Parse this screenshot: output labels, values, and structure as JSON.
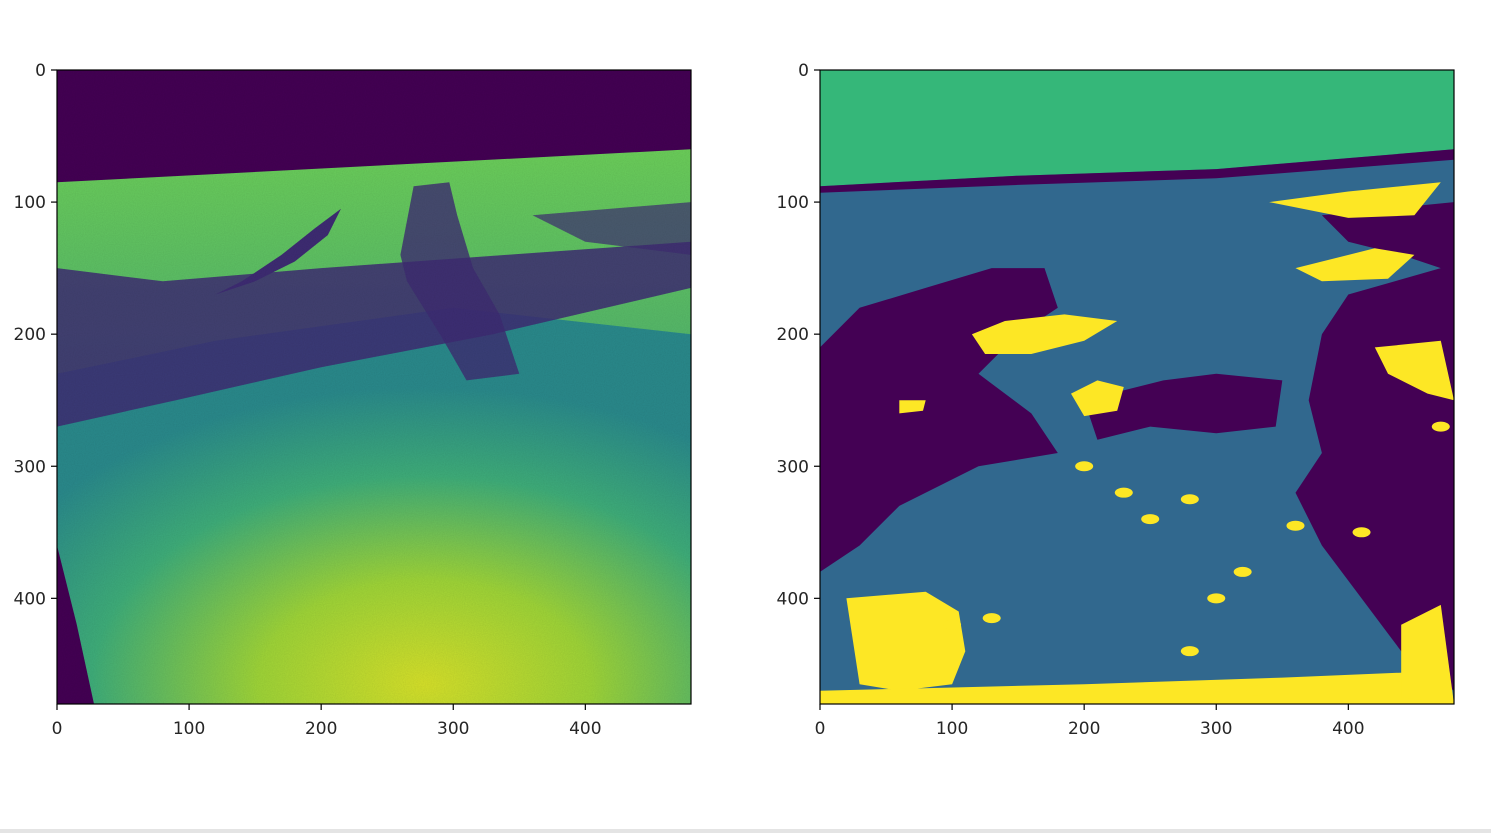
{
  "figure": {
    "background": "#ffffff",
    "colormap": "viridis"
  },
  "chart_data": [
    {
      "type": "heatmap",
      "name": "intensity-image",
      "title": "",
      "xlabel": "",
      "ylabel": "",
      "xlim": [
        0,
        480
      ],
      "ylim": [
        480,
        0
      ],
      "image_size": [
        480,
        480
      ],
      "x_ticks": [
        0,
        100,
        200,
        300,
        400
      ],
      "y_ticks": [
        0,
        100,
        200,
        300,
        400
      ],
      "x_tick_labels": [
        "0",
        "100",
        "200",
        "300",
        "400"
      ],
      "y_tick_labels": [
        "0",
        "100",
        "200",
        "300",
        "400"
      ],
      "grid": false,
      "legend": "none",
      "colors": [
        "#440154",
        "#3b528b",
        "#21918c",
        "#5ec962",
        "#fde725"
      ],
      "regions": {
        "sky": {
          "color": "#440154",
          "horizon_y_left": 85,
          "horizon_y_right": 60
        },
        "ground_near": {
          "color": "#a8d530"
        },
        "ground_mid": {
          "color": "#2a9a8a"
        },
        "ground_far": {
          "color": "#36b67a"
        },
        "shadow": {
          "color": "#3e2c73"
        },
        "rover_shadow_top": {
          "x": [
            270,
            300
          ],
          "y": [
            85,
            110
          ]
        }
      }
    },
    {
      "type": "heatmap",
      "name": "segmentation-mask",
      "title": "",
      "xlabel": "",
      "ylabel": "",
      "xlim": [
        0,
        480
      ],
      "ylim": [
        480,
        0
      ],
      "image_size": [
        480,
        480
      ],
      "x_ticks": [
        0,
        100,
        200,
        300,
        400
      ],
      "y_ticks": [
        0,
        100,
        200,
        300,
        400
      ],
      "x_tick_labels": [
        "0",
        "100",
        "200",
        "300",
        "400"
      ],
      "y_tick_labels": [
        "0",
        "100",
        "200",
        "300",
        "400"
      ],
      "grid": false,
      "legend": "none",
      "classes": [
        {
          "id": 0,
          "color": "#440154"
        },
        {
          "id": 1,
          "color": "#31688e"
        },
        {
          "id": 2,
          "color": "#35b779"
        },
        {
          "id": 3,
          "color": "#fde725"
        }
      ]
    }
  ]
}
